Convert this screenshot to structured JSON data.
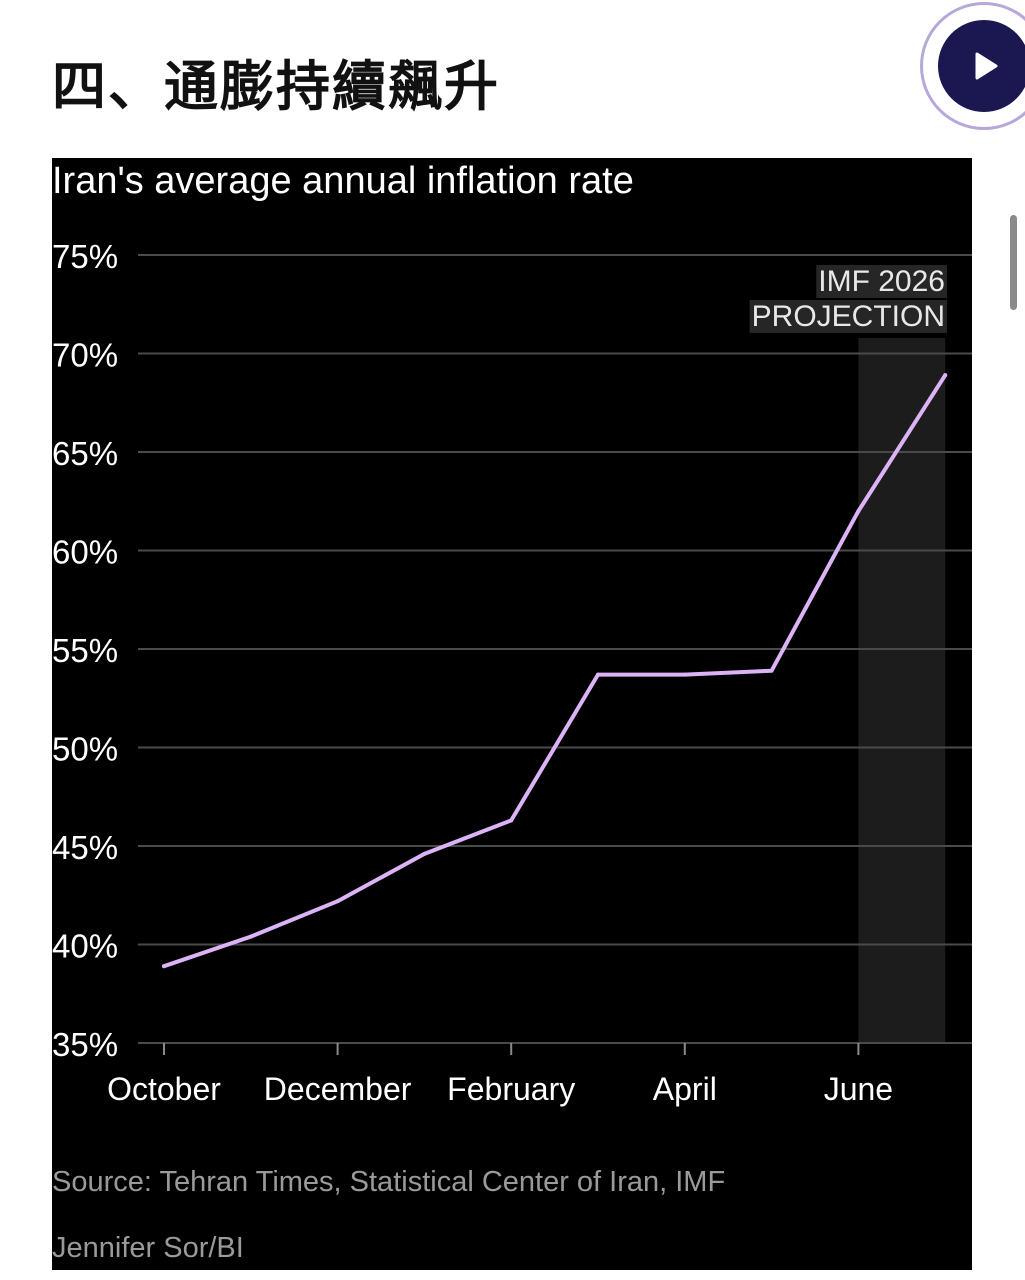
{
  "page": {
    "heading": "四、通膨持續飆升",
    "play_icon": "play-icon",
    "source": "Source: Tehran Times, Statistical Center of Iran, IMF",
    "credit": "Jennifer Sor/BI"
  },
  "colors": {
    "line": "#dcb3f7",
    "chart_background": "#000000",
    "grid": "#4a4a4a",
    "projection_band": "#1c1c1c",
    "play_button": "#1b1750",
    "play_ring": "#b7a8d9"
  },
  "chart_data": {
    "type": "line",
    "title": "Iran's average annual inflation rate",
    "xlabel": "",
    "ylabel": "",
    "ylim": [
      35,
      75
    ],
    "yticks": [
      35,
      40,
      45,
      50,
      55,
      60,
      65,
      70,
      75
    ],
    "ytick_labels": [
      "35%",
      "40%",
      "45%",
      "50%",
      "55%",
      "60%",
      "65%",
      "70%",
      "75%"
    ],
    "xticks": [
      0,
      2,
      4,
      6,
      8
    ],
    "xtick_labels": [
      "October",
      "December",
      "February",
      "April",
      "June"
    ],
    "grid": true,
    "series": [
      {
        "x": [
          0,
          1,
          2,
          3,
          4,
          5,
          6,
          7,
          8,
          9
        ],
        "values": [
          38.9,
          40.4,
          42.2,
          44.6,
          46.3,
          53.7,
          53.7,
          53.9,
          62.0,
          68.9
        ]
      }
    ],
    "annotation": {
      "lines": [
        "IMF 2026",
        "PROJECTION"
      ],
      "x_start": 8,
      "x_end": 9
    }
  }
}
